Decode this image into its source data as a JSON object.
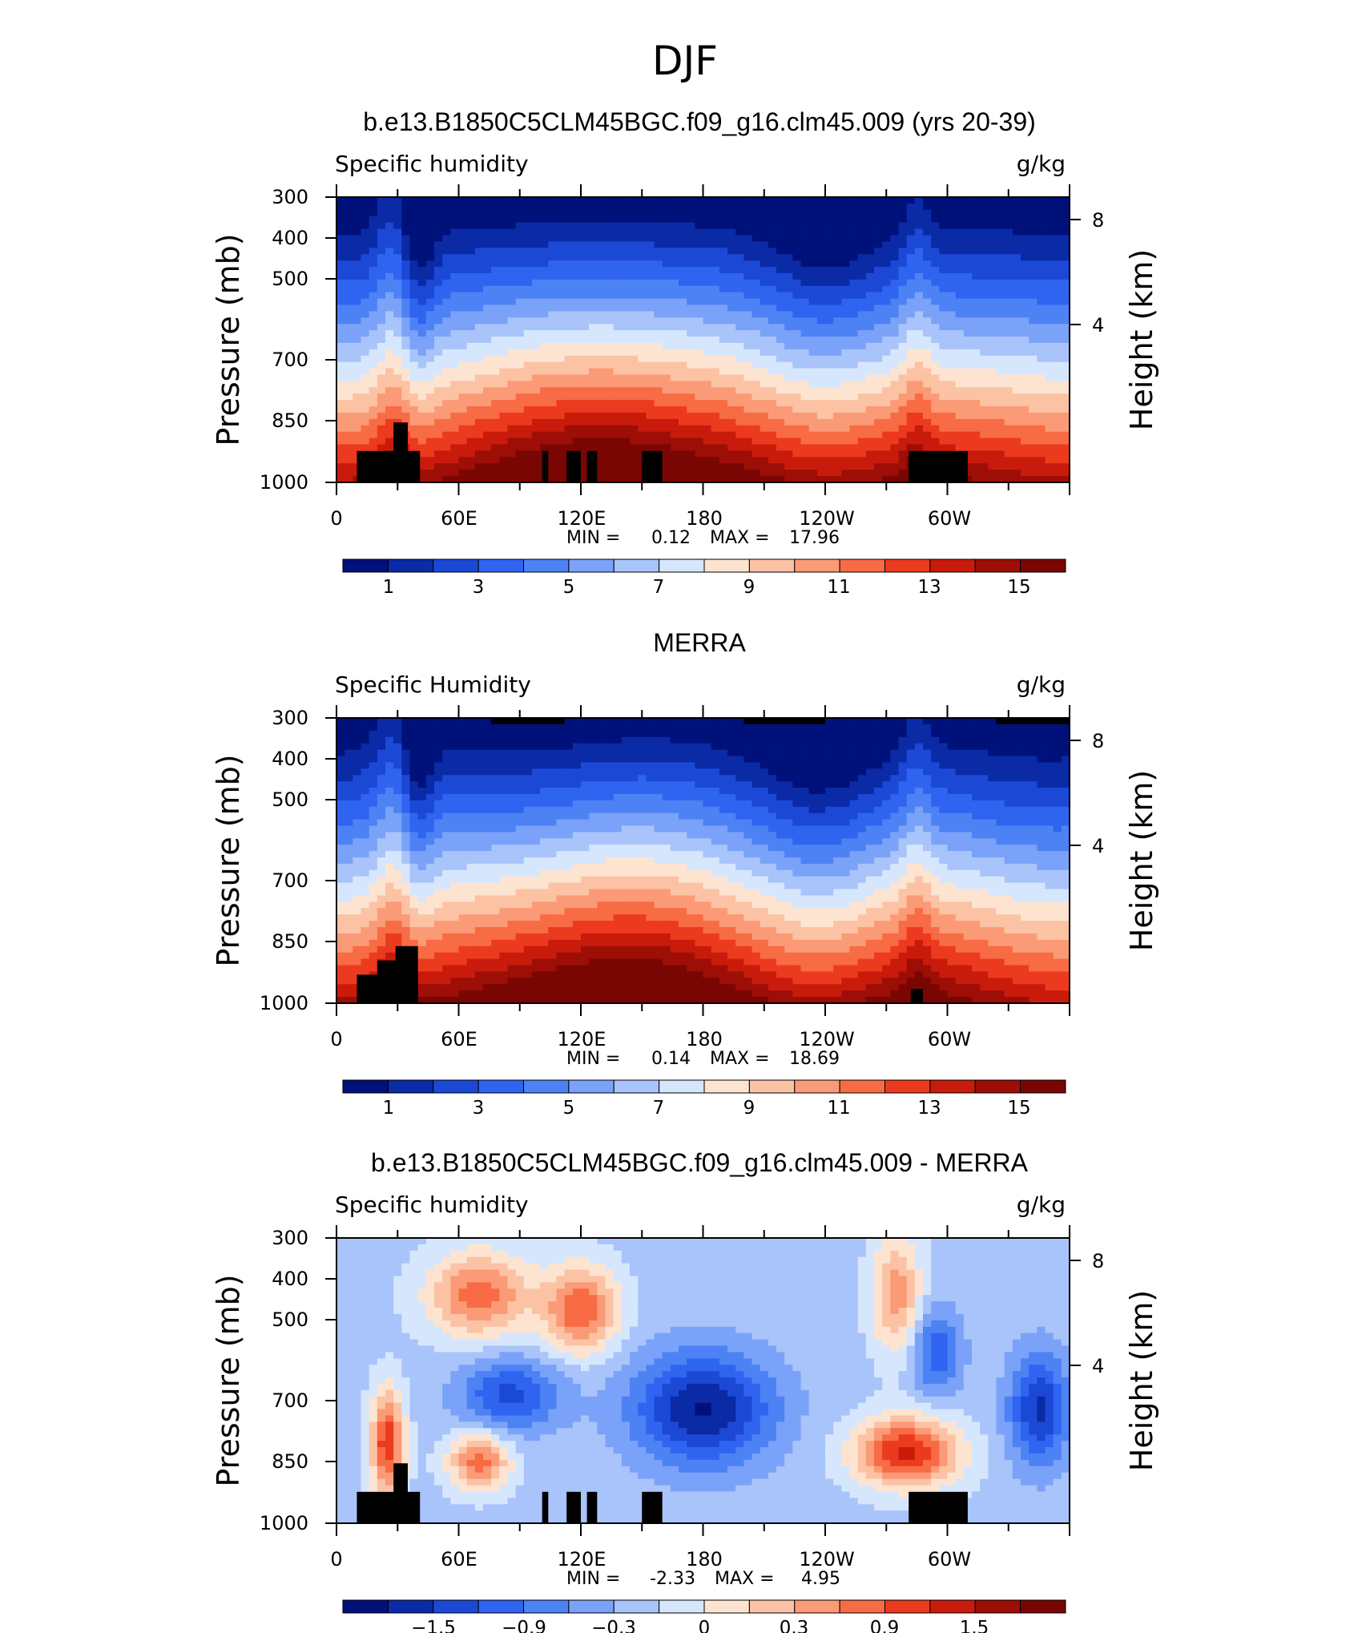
{
  "page_title": "DJF",
  "colors": {
    "palette_full": [
      "#00117a",
      "#0a2aa6",
      "#1c48d6",
      "#2f64f0",
      "#4d82f5",
      "#7aa2f8",
      "#a8c4fa",
      "#d6e6fd",
      "#fde4d1",
      "#fcc2a4",
      "#fb9a76",
      "#f76b45",
      "#ec3a1e",
      "#c91b0c",
      "#9d0e06",
      "#7a0603"
    ],
    "palette_diff": [
      "#00117a",
      "#0a2aa6",
      "#1c48d6",
      "#2f64f0",
      "#4d82f5",
      "#7aa2f8",
      "#a8c4fa",
      "#d6e6fd",
      "#fde4d1",
      "#fcc2a4",
      "#fb9a76",
      "#f76b45",
      "#ec3a1e",
      "#c91b0c",
      "#9d0e06",
      "#7a0603"
    ],
    "topography": "#000000"
  },
  "chart_data": [
    {
      "type": "heatmap",
      "title": "b.e13.B1850C5CLM45BGC.f09_g16.clm45.009 (yrs 20-39)",
      "left_label": "Specific humidity",
      "units": "g/kg",
      "ylabel": "Pressure (mb)",
      "ylabel_right": "Height (km)",
      "y_ticks": [
        "300",
        "400",
        "500",
        "700",
        "850",
        "1000"
      ],
      "y_right_ticks": [
        "8",
        "4"
      ],
      "x_ticks": [
        "0",
        "60E",
        "120E",
        "180",
        "120W",
        "60W"
      ],
      "xlim": [
        0,
        360
      ],
      "min_label": "MIN =",
      "min_value": "0.12",
      "max_label": "MAX =",
      "max_value": "17.96",
      "colorbar_labels": [
        "1",
        "3",
        "5",
        "7",
        "9",
        "11",
        "13",
        "15"
      ],
      "min": 0.12,
      "max": 17.96
    },
    {
      "type": "heatmap",
      "title": "MERRA",
      "left_label": "Specific Humidity",
      "units": "g/kg",
      "ylabel": "Pressure (mb)",
      "ylabel_right": "Height (km)",
      "y_ticks": [
        "300",
        "400",
        "500",
        "700",
        "850",
        "1000"
      ],
      "y_right_ticks": [
        "8",
        "4"
      ],
      "x_ticks": [
        "0",
        "60E",
        "120E",
        "180",
        "120W",
        "60W"
      ],
      "xlim": [
        0,
        360
      ],
      "min_label": "MIN =",
      "min_value": "0.14",
      "max_label": "MAX =",
      "max_value": "18.69",
      "colorbar_labels": [
        "1",
        "3",
        "5",
        "7",
        "9",
        "11",
        "13",
        "15"
      ],
      "min": 0.14,
      "max": 18.69
    },
    {
      "type": "heatmap",
      "title": "b.e13.B1850C5CLM45BGC.f09_g16.clm45.009 - MERRA",
      "left_label": "Specific humidity",
      "units": "g/kg",
      "ylabel": "Pressure (mb)",
      "ylabel_right": "Height (km)",
      "y_ticks": [
        "300",
        "400",
        "500",
        "700",
        "850",
        "1000"
      ],
      "y_right_ticks": [
        "8",
        "4"
      ],
      "x_ticks": [
        "0",
        "60E",
        "120E",
        "180",
        "120W",
        "60W"
      ],
      "xlim": [
        0,
        360
      ],
      "min_label": "MIN =",
      "min_value": "-2.33",
      "max_label": "MAX =",
      "max_value": "4.95",
      "colorbar_labels": [
        "−1.5",
        "−0.9",
        "−0.3",
        "0",
        "0.3",
        "0.9",
        "1.5"
      ],
      "min": -2.33,
      "max": 4.95
    }
  ]
}
